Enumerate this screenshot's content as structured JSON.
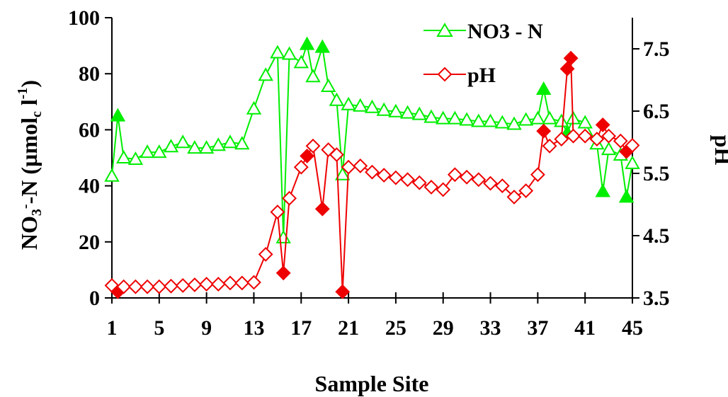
{
  "chart_data": {
    "type": "line",
    "xlabel": "Sample Site",
    "ylabel_left": {
      "main": "NO",
      "sub1": "3",
      "sup1": "-",
      "mid": "-N (µmol",
      "sub2": "c",
      "mid2": " l",
      "sup2": "-1",
      "end": ")"
    },
    "ylabel_right": "pH",
    "xlim": [
      1,
      45
    ],
    "ylim_left": [
      0,
      100
    ],
    "ylim_right": [
      3.5,
      8.0
    ],
    "x_ticks": [
      1,
      5,
      9,
      13,
      17,
      21,
      25,
      29,
      33,
      37,
      41,
      45
    ],
    "x_tick_labels": [
      "1",
      "5",
      "9",
      "13",
      "17",
      "21",
      "25",
      "29",
      "33",
      "37",
      "41",
      "45"
    ],
    "y_left_ticks": [
      0,
      20,
      40,
      60,
      80,
      100
    ],
    "y_left_tick_labels": [
      "0",
      "20",
      "40",
      "60",
      "80",
      "100"
    ],
    "y_right_ticks": [
      3.5,
      4.5,
      5.5,
      6.5,
      7.5
    ],
    "y_right_tick_labels": [
      "3.5",
      "4.5",
      "5.5",
      "6.5",
      "7.5"
    ],
    "legend_position": "top-right",
    "series": [
      {
        "name": "NO3 - N",
        "axis": "left",
        "color": "#00ee00",
        "marker": "triangle",
        "points": [
          {
            "x": 1,
            "y": 43.5,
            "filled": false
          },
          {
            "x": 1.5,
            "y": 65,
            "filled": true
          },
          {
            "x": 2,
            "y": 50,
            "filled": false
          },
          {
            "x": 3,
            "y": 49.5,
            "filled": false
          },
          {
            "x": 4,
            "y": 52,
            "filled": false
          },
          {
            "x": 5,
            "y": 52,
            "filled": false
          },
          {
            "x": 6,
            "y": 54,
            "filled": false
          },
          {
            "x": 7,
            "y": 55.5,
            "filled": false
          },
          {
            "x": 8,
            "y": 53.5,
            "filled": false
          },
          {
            "x": 9,
            "y": 53.5,
            "filled": false
          },
          {
            "x": 10,
            "y": 54.5,
            "filled": false
          },
          {
            "x": 11,
            "y": 55.5,
            "filled": false
          },
          {
            "x": 12,
            "y": 55,
            "filled": false
          },
          {
            "x": 13,
            "y": 67.5,
            "filled": false
          },
          {
            "x": 14,
            "y": 79.5,
            "filled": false
          },
          {
            "x": 15,
            "y": 87.5,
            "filled": false
          },
          {
            "x": 15.5,
            "y": 21.5,
            "filled": false
          },
          {
            "x": 16,
            "y": 87,
            "filled": false
          },
          {
            "x": 17,
            "y": 84,
            "filled": false
          },
          {
            "x": 17.5,
            "y": 90.5,
            "filled": true
          },
          {
            "x": 18,
            "y": 79,
            "filled": false
          },
          {
            "x": 18.8,
            "y": 89.5,
            "filled": true
          },
          {
            "x": 19.3,
            "y": 75.5,
            "filled": false
          },
          {
            "x": 20,
            "y": 70.5,
            "filled": false
          },
          {
            "x": 20.5,
            "y": 44,
            "filled": false
          },
          {
            "x": 21,
            "y": 69,
            "filled": false
          },
          {
            "x": 22,
            "y": 68.5,
            "filled": false
          },
          {
            "x": 23,
            "y": 68,
            "filled": false
          },
          {
            "x": 24,
            "y": 67,
            "filled": false
          },
          {
            "x": 25,
            "y": 66.5,
            "filled": false
          },
          {
            "x": 26,
            "y": 66,
            "filled": false
          },
          {
            "x": 27,
            "y": 65.5,
            "filled": false
          },
          {
            "x": 28,
            "y": 64.5,
            "filled": false
          },
          {
            "x": 29,
            "y": 64,
            "filled": false
          },
          {
            "x": 30,
            "y": 64,
            "filled": false
          },
          {
            "x": 31,
            "y": 63.5,
            "filled": false
          },
          {
            "x": 32,
            "y": 63,
            "filled": false
          },
          {
            "x": 33,
            "y": 63,
            "filled": false
          },
          {
            "x": 34,
            "y": 62.5,
            "filled": false
          },
          {
            "x": 35,
            "y": 62,
            "filled": false
          },
          {
            "x": 36,
            "y": 63.5,
            "filled": false
          },
          {
            "x": 37,
            "y": 64,
            "filled": false
          },
          {
            "x": 37.5,
            "y": 74.5,
            "filled": true
          },
          {
            "x": 38,
            "y": 64,
            "filled": false
          },
          {
            "x": 39,
            "y": 63,
            "filled": false
          },
          {
            "x": 39.5,
            "y": 59,
            "filled": true
          },
          {
            "x": 40,
            "y": 64,
            "filled": false
          },
          {
            "x": 41,
            "y": 62.5,
            "filled": false
          },
          {
            "x": 42,
            "y": 55,
            "filled": false
          },
          {
            "x": 42.5,
            "y": 38,
            "filled": true
          },
          {
            "x": 43,
            "y": 53,
            "filled": false
          },
          {
            "x": 44,
            "y": 51,
            "filled": false
          },
          {
            "x": 44.5,
            "y": 36,
            "filled": true
          },
          {
            "x": 45,
            "y": 48,
            "filled": false
          }
        ]
      },
      {
        "name": "pH",
        "axis": "right",
        "color": "#ee0000",
        "marker": "diamond",
        "points": [
          {
            "x": 1,
            "y": 3.7,
            "filled": false
          },
          {
            "x": 1.5,
            "y": 3.6,
            "filled": true
          },
          {
            "x": 2,
            "y": 3.68,
            "filled": false
          },
          {
            "x": 3,
            "y": 3.68,
            "filled": false
          },
          {
            "x": 4,
            "y": 3.68,
            "filled": false
          },
          {
            "x": 5,
            "y": 3.68,
            "filled": false
          },
          {
            "x": 6,
            "y": 3.69,
            "filled": false
          },
          {
            "x": 7,
            "y": 3.7,
            "filled": false
          },
          {
            "x": 8,
            "y": 3.71,
            "filled": false
          },
          {
            "x": 9,
            "y": 3.72,
            "filled": false
          },
          {
            "x": 10,
            "y": 3.72,
            "filled": false
          },
          {
            "x": 11,
            "y": 3.74,
            "filled": false
          },
          {
            "x": 12,
            "y": 3.74,
            "filled": false
          },
          {
            "x": 13,
            "y": 3.75,
            "filled": false
          },
          {
            "x": 14,
            "y": 4.2,
            "filled": false
          },
          {
            "x": 15,
            "y": 4.88,
            "filled": false
          },
          {
            "x": 15.5,
            "y": 3.9,
            "filled": true
          },
          {
            "x": 16,
            "y": 5.1,
            "filled": false
          },
          {
            "x": 17,
            "y": 5.6,
            "filled": false
          },
          {
            "x": 17.5,
            "y": 5.78,
            "filled": true
          },
          {
            "x": 18,
            "y": 5.94,
            "filled": false
          },
          {
            "x": 18.8,
            "y": 4.93,
            "filled": true
          },
          {
            "x": 19.3,
            "y": 5.88,
            "filled": false
          },
          {
            "x": 20,
            "y": 5.8,
            "filled": false
          },
          {
            "x": 20.5,
            "y": 3.6,
            "filled": true
          },
          {
            "x": 21,
            "y": 5.6,
            "filled": false
          },
          {
            "x": 22,
            "y": 5.62,
            "filled": false
          },
          {
            "x": 23,
            "y": 5.52,
            "filled": false
          },
          {
            "x": 24,
            "y": 5.47,
            "filled": false
          },
          {
            "x": 25,
            "y": 5.43,
            "filled": false
          },
          {
            "x": 26,
            "y": 5.4,
            "filled": false
          },
          {
            "x": 27,
            "y": 5.35,
            "filled": false
          },
          {
            "x": 28,
            "y": 5.28,
            "filled": false
          },
          {
            "x": 29,
            "y": 5.24,
            "filled": false
          },
          {
            "x": 30,
            "y": 5.48,
            "filled": false
          },
          {
            "x": 31,
            "y": 5.44,
            "filled": false
          },
          {
            "x": 32,
            "y": 5.4,
            "filled": false
          },
          {
            "x": 33,
            "y": 5.34,
            "filled": false
          },
          {
            "x": 34,
            "y": 5.3,
            "filled": false
          },
          {
            "x": 35,
            "y": 5.12,
            "filled": false
          },
          {
            "x": 36,
            "y": 5.22,
            "filled": false
          },
          {
            "x": 37,
            "y": 5.48,
            "filled": false
          },
          {
            "x": 37.5,
            "y": 6.18,
            "filled": true
          },
          {
            "x": 38,
            "y": 5.94,
            "filled": false
          },
          {
            "x": 39,
            "y": 6.05,
            "filled": false
          },
          {
            "x": 39.5,
            "y": 7.18,
            "filled": true
          },
          {
            "x": 39.8,
            "y": 7.35,
            "filled": true
          },
          {
            "x": 40,
            "y": 6.1,
            "filled": false
          },
          {
            "x": 41,
            "y": 6.1,
            "filled": false
          },
          {
            "x": 42,
            "y": 6.05,
            "filled": false
          },
          {
            "x": 42.5,
            "y": 6.28,
            "filled": true
          },
          {
            "x": 43,
            "y": 6.1,
            "filled": false
          },
          {
            "x": 44,
            "y": 6.02,
            "filled": false
          },
          {
            "x": 44.5,
            "y": 5.85,
            "filled": true
          },
          {
            "x": 45,
            "y": 5.95,
            "filled": false
          }
        ]
      }
    ]
  }
}
